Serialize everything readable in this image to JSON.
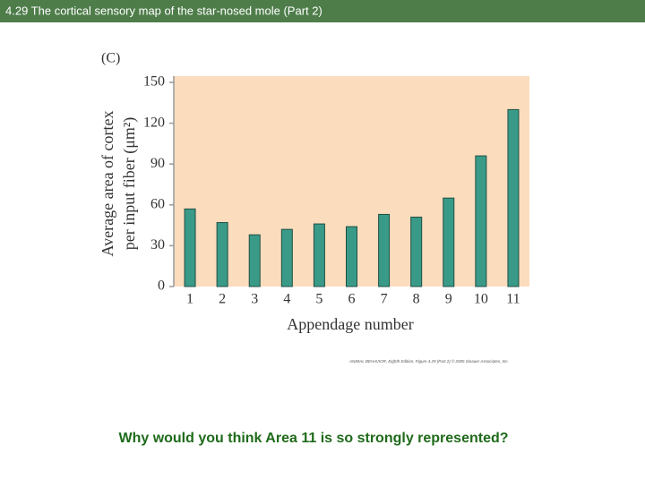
{
  "header": {
    "title": "4.29  The cortical sensory map of the star-nosed mole (Part 2)"
  },
  "chart_data": {
    "type": "bar",
    "panel_label": "(C)",
    "ylabel": [
      "Average area of cortex",
      "per input fiber (μm²)"
    ],
    "xlabel": "Appendage number",
    "categories": [
      "1",
      "2",
      "3",
      "4",
      "5",
      "6",
      "7",
      "8",
      "9",
      "10",
      "11"
    ],
    "values": [
      57,
      47,
      38,
      42,
      46,
      44,
      53,
      51,
      65,
      96,
      130
    ],
    "color": "#3a9a88",
    "ylim": [
      0,
      150
    ],
    "yticks": [
      0,
      30,
      60,
      90,
      120,
      150
    ],
    "credit": "ANIMAL BEHAVIOR, Eighth Edition, Figure 4.29 (Part 2) © 2005 Sinauer Associates, Inc."
  },
  "question": "Why would you think Area 11 is so strongly represented?"
}
